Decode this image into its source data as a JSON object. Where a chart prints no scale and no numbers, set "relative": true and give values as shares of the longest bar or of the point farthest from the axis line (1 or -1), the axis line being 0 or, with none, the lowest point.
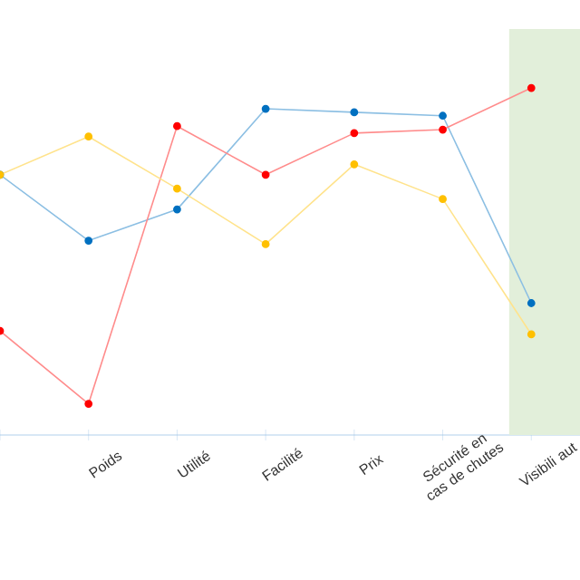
{
  "chart_data": {
    "type": "line",
    "relative": true,
    "categories": [
      null,
      "Poids",
      "Utilité",
      "Facilité",
      "Prix",
      "Sécurité en cas de chutes",
      "Visibili aut"
    ],
    "series": [
      {
        "color": "#0070c0",
        "values": [
          0.75,
          0.56,
          0.65,
          0.94,
          0.93,
          0.92,
          0.38
        ]
      },
      {
        "color": "#ff0000",
        "values": [
          0.3,
          0.09,
          0.89,
          0.75,
          0.87,
          0.88,
          1
        ]
      },
      {
        "color": "#ffc000",
        "values": [
          0.75,
          0.86,
          0.71,
          0.55,
          0.78,
          0.68,
          0.29
        ]
      }
    ],
    "bands": [
      {
        "axis": "x",
        "from": "Visibili aut",
        "to": "Visibili aut",
        "color": "#e2efda"
      }
    ],
    "marker": "circle",
    "line_style": "solid",
    "grid": false
  }
}
